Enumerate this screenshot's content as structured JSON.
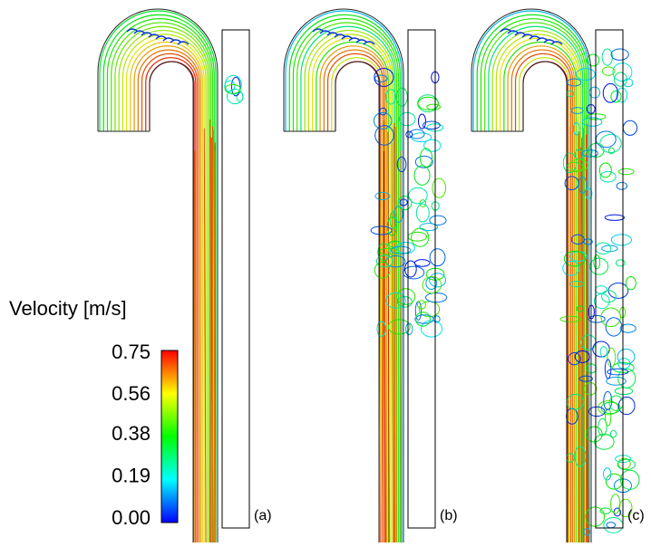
{
  "colorbar": {
    "title": "Velocity [m/s]",
    "ticks": [
      0.75,
      0.56,
      0.38,
      0.19,
      {
        "value": 0,
        "label": "0.00"
      }
    ],
    "colors": [
      "#0000ff",
      "#00ffff",
      "#00ff00",
      "#ffff00",
      "#ff0000"
    ]
  },
  "panels": [
    {
      "label": "(a)"
    },
    {
      "label": "(b)"
    },
    {
      "label": "(c)"
    }
  ]
}
